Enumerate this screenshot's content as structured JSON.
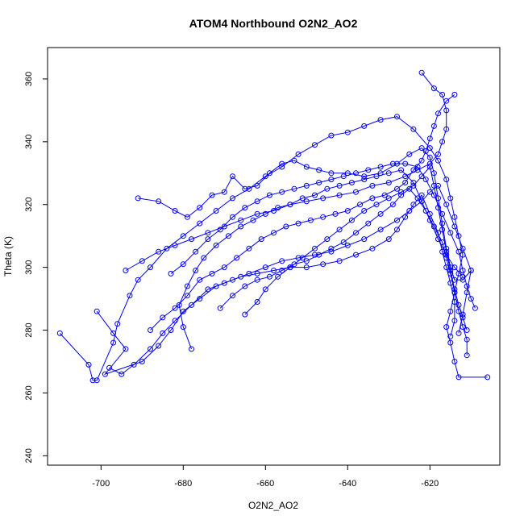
{
  "chart_data": {
    "type": "line",
    "title": "ATOM4 Northbound O2N2_AO2",
    "xlabel": "O2N2_AO2",
    "ylabel": "Theta (K)",
    "xlim": [
      -713,
      -603
    ],
    "ylim": [
      237,
      370
    ],
    "x_ticks": [
      -700,
      -680,
      -660,
      -640,
      -620
    ],
    "x_tick_labels": [
      "-700",
      "-680",
      "-660",
      "-640",
      "-620"
    ],
    "y_ticks": [
      240,
      260,
      280,
      300,
      320,
      340,
      360
    ],
    "y_tick_labels": [
      "240",
      "260",
      "280",
      "300",
      "320",
      "340",
      "360"
    ],
    "grid": false,
    "markers": "open-circle",
    "color": "#0000ff",
    "series": [
      {
        "points": [
          [
            -710,
            279
          ],
          [
            -703,
            269
          ],
          [
            -702,
            264
          ],
          [
            -701,
            264
          ],
          [
            -697,
            276
          ],
          [
            -696,
            282
          ],
          [
            -693,
            291
          ],
          [
            -691,
            296
          ],
          [
            -688,
            300
          ],
          [
            -684,
            306
          ],
          [
            -680,
            310
          ],
          [
            -676,
            314
          ],
          [
            -672,
            318
          ],
          [
            -668,
            322
          ],
          [
            -664,
            325
          ],
          [
            -660,
            329
          ],
          [
            -656,
            332
          ],
          [
            -652,
            336
          ],
          [
            -648,
            339
          ],
          [
            -644,
            342
          ],
          [
            -640,
            343
          ],
          [
            -636,
            345
          ],
          [
            -632,
            347
          ],
          [
            -628,
            348
          ],
          [
            -624,
            344
          ],
          [
            -620,
            338
          ],
          [
            -618,
            334
          ],
          [
            -616,
            328
          ],
          [
            -615,
            322
          ],
          [
            -614,
            316
          ],
          [
            -613,
            310
          ],
          [
            -612,
            304
          ],
          [
            -613,
            298
          ],
          [
            -614,
            292
          ],
          [
            -615,
            286
          ],
          [
            -616,
            281
          ],
          [
            -615,
            276
          ],
          [
            -614,
            270
          ],
          [
            -613,
            265
          ],
          [
            -606,
            265
          ]
        ]
      },
      {
        "points": [
          [
            -701,
            286
          ],
          [
            -697,
            279
          ],
          [
            -694,
            274
          ],
          [
            -699,
            266
          ],
          [
            -690,
            270
          ],
          [
            -686,
            275
          ],
          [
            -683,
            280
          ],
          [
            -680,
            286
          ],
          [
            -676,
            290
          ],
          [
            -672,
            294
          ],
          [
            -668,
            296
          ],
          [
            -664,
            298
          ],
          [
            -660,
            300
          ],
          [
            -656,
            302
          ],
          [
            -652,
            303
          ],
          [
            -648,
            304
          ],
          [
            -644,
            305
          ],
          [
            -640,
            307
          ],
          [
            -636,
            309
          ],
          [
            -632,
            312
          ],
          [
            -628,
            315
          ],
          [
            -625,
            318
          ],
          [
            -622,
            321
          ],
          [
            -620,
            324
          ],
          [
            -618,
            326
          ],
          [
            -616,
            320
          ],
          [
            -614,
            313
          ],
          [
            -612,
            306
          ],
          [
            -610,
            299
          ],
          [
            -611,
            292
          ],
          [
            -612,
            285
          ],
          [
            -613,
            279
          ]
        ]
      },
      {
        "points": [
          [
            -694,
            299
          ],
          [
            -690,
            302
          ],
          [
            -686,
            305
          ],
          [
            -682,
            307
          ],
          [
            -678,
            309
          ],
          [
            -674,
            311
          ],
          [
            -670,
            313
          ],
          [
            -666,
            315
          ],
          [
            -662,
            317
          ],
          [
            -658,
            318
          ],
          [
            -654,
            320
          ],
          [
            -650,
            321
          ],
          [
            -646,
            322
          ],
          [
            -642,
            323
          ],
          [
            -638,
            324
          ],
          [
            -634,
            326
          ],
          [
            -630,
            327
          ],
          [
            -626,
            329
          ],
          [
            -623,
            331
          ],
          [
            -620,
            333
          ],
          [
            -618,
            336
          ],
          [
            -617,
            340
          ],
          [
            -616,
            344
          ],
          [
            -616,
            350
          ],
          [
            -617,
            355
          ],
          [
            -619,
            357
          ],
          [
            -622,
            362
          ]
        ]
      },
      {
        "points": [
          [
            -691,
            322
          ],
          [
            -686,
            321
          ],
          [
            -682,
            318
          ],
          [
            -679,
            316
          ],
          [
            -676,
            319
          ],
          [
            -673,
            323
          ],
          [
            -670,
            324
          ],
          [
            -668,
            329
          ],
          [
            -665,
            325
          ],
          [
            -662,
            326
          ],
          [
            -659,
            330
          ],
          [
            -656,
            333
          ],
          [
            -653,
            334
          ],
          [
            -650,
            332
          ],
          [
            -647,
            331
          ],
          [
            -644,
            330
          ],
          [
            -640,
            330
          ],
          [
            -636,
            329
          ],
          [
            -632,
            330
          ],
          [
            -628,
            333
          ],
          [
            -625,
            336
          ],
          [
            -622,
            338
          ],
          [
            -620,
            335
          ],
          [
            -619,
            330
          ],
          [
            -618,
            322
          ],
          [
            -617,
            314
          ],
          [
            -616,
            306
          ],
          [
            -615,
            300
          ],
          [
            -614,
            296
          ],
          [
            -612,
            296
          ],
          [
            -610,
            299
          ]
        ]
      },
      {
        "points": [
          [
            -698,
            268
          ],
          [
            -695,
            266
          ],
          [
            -692,
            269
          ],
          [
            -688,
            274
          ],
          [
            -685,
            279
          ],
          [
            -682,
            283
          ],
          [
            -678,
            288
          ],
          [
            -674,
            293
          ],
          [
            -670,
            295
          ],
          [
            -666,
            297
          ],
          [
            -662,
            298
          ],
          [
            -658,
            299
          ],
          [
            -654,
            300
          ],
          [
            -650,
            300
          ],
          [
            -646,
            301
          ],
          [
            -642,
            302
          ],
          [
            -638,
            304
          ],
          [
            -634,
            306
          ],
          [
            -630,
            309
          ],
          [
            -628,
            312
          ],
          [
            -626,
            316
          ],
          [
            -624,
            320
          ],
          [
            -622,
            323
          ],
          [
            -620,
            317
          ],
          [
            -618,
            311
          ],
          [
            -617,
            305
          ],
          [
            -616,
            300
          ],
          [
            -615,
            295
          ],
          [
            -614,
            289
          ],
          [
            -614,
            283
          ],
          [
            -615,
            278
          ]
        ]
      },
      {
        "points": [
          [
            -688,
            280
          ],
          [
            -685,
            284
          ],
          [
            -682,
            287
          ],
          [
            -679,
            291
          ],
          [
            -676,
            296
          ],
          [
            -673,
            298
          ],
          [
            -670,
            300
          ],
          [
            -667,
            303
          ],
          [
            -664,
            306
          ],
          [
            -661,
            309
          ],
          [
            -658,
            311
          ],
          [
            -655,
            313
          ],
          [
            -652,
            314
          ],
          [
            -649,
            315
          ],
          [
            -646,
            316
          ],
          [
            -643,
            317
          ],
          [
            -640,
            318
          ],
          [
            -637,
            320
          ],
          [
            -634,
            322
          ],
          [
            -631,
            323
          ],
          [
            -628,
            325
          ],
          [
            -626,
            327
          ],
          [
            -624,
            331
          ],
          [
            -622,
            334
          ],
          [
            -621,
            337
          ],
          [
            -620,
            341
          ],
          [
            -619,
            345
          ],
          [
            -618,
            349
          ],
          [
            -616,
            353
          ],
          [
            -614,
            355
          ]
        ]
      },
      {
        "points": [
          [
            -683,
            298
          ],
          [
            -680,
            301
          ],
          [
            -677,
            305
          ],
          [
            -674,
            309
          ],
          [
            -671,
            312
          ],
          [
            -668,
            316
          ],
          [
            -665,
            319
          ],
          [
            -662,
            321
          ],
          [
            -659,
            323
          ],
          [
            -656,
            324
          ],
          [
            -653,
            325
          ],
          [
            -650,
            326
          ],
          [
            -647,
            327
          ],
          [
            -644,
            328
          ],
          [
            -641,
            329
          ],
          [
            -638,
            330
          ],
          [
            -635,
            331
          ],
          [
            -632,
            332
          ],
          [
            -629,
            333
          ],
          [
            -626,
            333
          ],
          [
            -623,
            332
          ],
          [
            -621,
            328
          ],
          [
            -619,
            323
          ],
          [
            -617,
            317
          ],
          [
            -615,
            311
          ],
          [
            -613,
            305
          ],
          [
            -612,
            299
          ],
          [
            -611,
            294
          ],
          [
            -610,
            290
          ],
          [
            -609,
            287
          ]
        ]
      },
      {
        "points": [
          [
            -671,
            287
          ],
          [
            -668,
            291
          ],
          [
            -665,
            294
          ],
          [
            -662,
            296
          ],
          [
            -659,
            297
          ],
          [
            -656,
            299
          ],
          [
            -653,
            301
          ],
          [
            -650,
            302
          ],
          [
            -647,
            304
          ],
          [
            -644,
            306
          ],
          [
            -641,
            308
          ],
          [
            -638,
            311
          ],
          [
            -635,
            314
          ],
          [
            -632,
            317
          ],
          [
            -629,
            320
          ],
          [
            -627,
            323
          ],
          [
            -625,
            325
          ],
          [
            -623,
            322
          ],
          [
            -621,
            318
          ],
          [
            -619,
            313
          ],
          [
            -617,
            308
          ],
          [
            -616,
            303
          ],
          [
            -615,
            298
          ],
          [
            -614,
            292
          ],
          [
            -613,
            286
          ],
          [
            -612,
            281
          ],
          [
            -611,
            277
          ],
          [
            -611,
            272
          ]
        ]
      },
      {
        "points": [
          [
            -678,
            274
          ],
          [
            -680,
            281
          ],
          [
            -681,
            288
          ],
          [
            -679,
            294
          ],
          [
            -677,
            299
          ],
          [
            -675,
            303
          ],
          [
            -672,
            307
          ],
          [
            -669,
            310
          ],
          [
            -666,
            313
          ],
          [
            -663,
            315
          ],
          [
            -660,
            317
          ],
          [
            -657,
            319
          ],
          [
            -654,
            320
          ],
          [
            -651,
            322
          ],
          [
            -648,
            323
          ],
          [
            -645,
            325
          ],
          [
            -642,
            326
          ],
          [
            -639,
            327
          ],
          [
            -636,
            328
          ],
          [
            -633,
            329
          ],
          [
            -630,
            330
          ],
          [
            -627,
            331
          ],
          [
            -624,
            327
          ],
          [
            -622,
            321
          ],
          [
            -620,
            315
          ],
          [
            -618,
            309
          ],
          [
            -616,
            304
          ],
          [
            -614,
            300
          ],
          [
            -612,
            297
          ]
        ]
      },
      {
        "points": [
          [
            -665,
            285
          ],
          [
            -662,
            289
          ],
          [
            -660,
            293
          ],
          [
            -657,
            297
          ],
          [
            -654,
            300
          ],
          [
            -651,
            303
          ],
          [
            -648,
            306
          ],
          [
            -645,
            309
          ],
          [
            -642,
            312
          ],
          [
            -639,
            315
          ],
          [
            -636,
            318
          ],
          [
            -633,
            320
          ],
          [
            -630,
            322
          ],
          [
            -627,
            324
          ],
          [
            -624,
            326
          ],
          [
            -622,
            329
          ],
          [
            -620,
            332
          ],
          [
            -619,
            326
          ],
          [
            -618,
            319
          ],
          [
            -617,
            312
          ],
          [
            -616,
            305
          ],
          [
            -615,
            299
          ],
          [
            -614,
            293
          ],
          [
            -613,
            288
          ],
          [
            -612,
            284
          ],
          [
            -611,
            280
          ]
        ]
      }
    ]
  }
}
